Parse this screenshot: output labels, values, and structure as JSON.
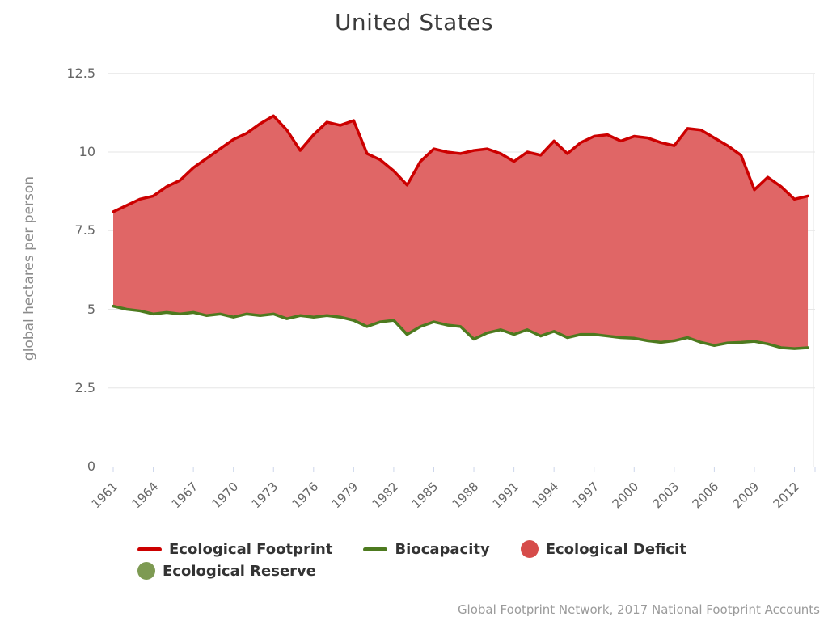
{
  "title": "United States",
  "y_axis_title": "global hectares per person",
  "credits": "Global Footprint Network, 2017 National Footprint Accounts",
  "colors": {
    "footprint_line": "#cc0000",
    "biocapacity_line": "#4d7a1f",
    "deficit_fill": "#e06666",
    "deficit_marker": "#d64c4a",
    "reserve_marker": "#7d9a52",
    "axis_line": "#ccd6eb",
    "gridline": "#e6e6e6",
    "title_color": "#3a3a3a",
    "label_color": "#666666",
    "credits_color": "#9b9b9b"
  },
  "legend": {
    "items": [
      {
        "label": "Ecological Footprint",
        "swatch": "line",
        "color": "#cc0000"
      },
      {
        "label": "Biocapacity",
        "swatch": "line",
        "color": "#4d7a1f"
      },
      {
        "label": "Ecological Deficit",
        "swatch": "circle",
        "color": "#d64c4a"
      },
      {
        "label": "Ecological Reserve",
        "swatch": "circle",
        "color": "#7d9a52"
      }
    ]
  },
  "chart_data": {
    "type": "area",
    "title": "United States",
    "xlabel": "",
    "ylabel": "global hectares per person",
    "ylim": [
      0,
      12.5
    ],
    "yticks": [
      0,
      2.5,
      5,
      7.5,
      10,
      12.5
    ],
    "xticks": [
      1961,
      1964,
      1967,
      1970,
      1973,
      1976,
      1979,
      1982,
      1985,
      1988,
      1991,
      1994,
      1997,
      2000,
      2003,
      2006,
      2009,
      2012
    ],
    "grid": true,
    "legend_position": "bottom",
    "area_between_series_label": "Ecological Deficit",
    "x": [
      1961,
      1962,
      1963,
      1964,
      1965,
      1966,
      1967,
      1968,
      1969,
      1970,
      1971,
      1972,
      1973,
      1974,
      1975,
      1976,
      1977,
      1978,
      1979,
      1980,
      1981,
      1982,
      1983,
      1984,
      1985,
      1986,
      1987,
      1988,
      1989,
      1990,
      1991,
      1992,
      1993,
      1994,
      1995,
      1996,
      1997,
      1998,
      1999,
      2000,
      2001,
      2002,
      2003,
      2004,
      2005,
      2006,
      2007,
      2008,
      2009,
      2010,
      2011,
      2012,
      2013
    ],
    "series": [
      {
        "name": "Ecological Footprint",
        "color": "#cc0000",
        "values": [
          8.1,
          8.3,
          8.5,
          8.6,
          8.9,
          9.1,
          9.5,
          9.8,
          10.1,
          10.4,
          10.6,
          10.9,
          11.15,
          10.7,
          10.05,
          10.55,
          10.95,
          10.85,
          11.0,
          9.95,
          9.75,
          9.4,
          8.95,
          9.7,
          10.1,
          10.0,
          9.95,
          10.05,
          10.1,
          9.95,
          9.7,
          10.0,
          9.9,
          10.35,
          9.95,
          10.3,
          10.5,
          10.55,
          10.35,
          10.5,
          10.45,
          10.3,
          10.2,
          10.75,
          10.7,
          10.45,
          10.2,
          9.9,
          8.8,
          9.2,
          8.9,
          8.5,
          8.6
        ]
      },
      {
        "name": "Biocapacity",
        "color": "#4d7a1f",
        "values": [
          5.1,
          5.0,
          4.95,
          4.85,
          4.9,
          4.85,
          4.9,
          4.8,
          4.85,
          4.75,
          4.85,
          4.8,
          4.85,
          4.7,
          4.8,
          4.75,
          4.8,
          4.75,
          4.65,
          4.45,
          4.6,
          4.65,
          4.2,
          4.45,
          4.6,
          4.5,
          4.45,
          4.05,
          4.25,
          4.35,
          4.2,
          4.35,
          4.15,
          4.3,
          4.1,
          4.2,
          4.2,
          4.15,
          4.1,
          4.08,
          4.0,
          3.95,
          4.0,
          4.1,
          3.95,
          3.85,
          3.93,
          3.95,
          3.98,
          3.9,
          3.78,
          3.75,
          3.78
        ]
      }
    ]
  }
}
